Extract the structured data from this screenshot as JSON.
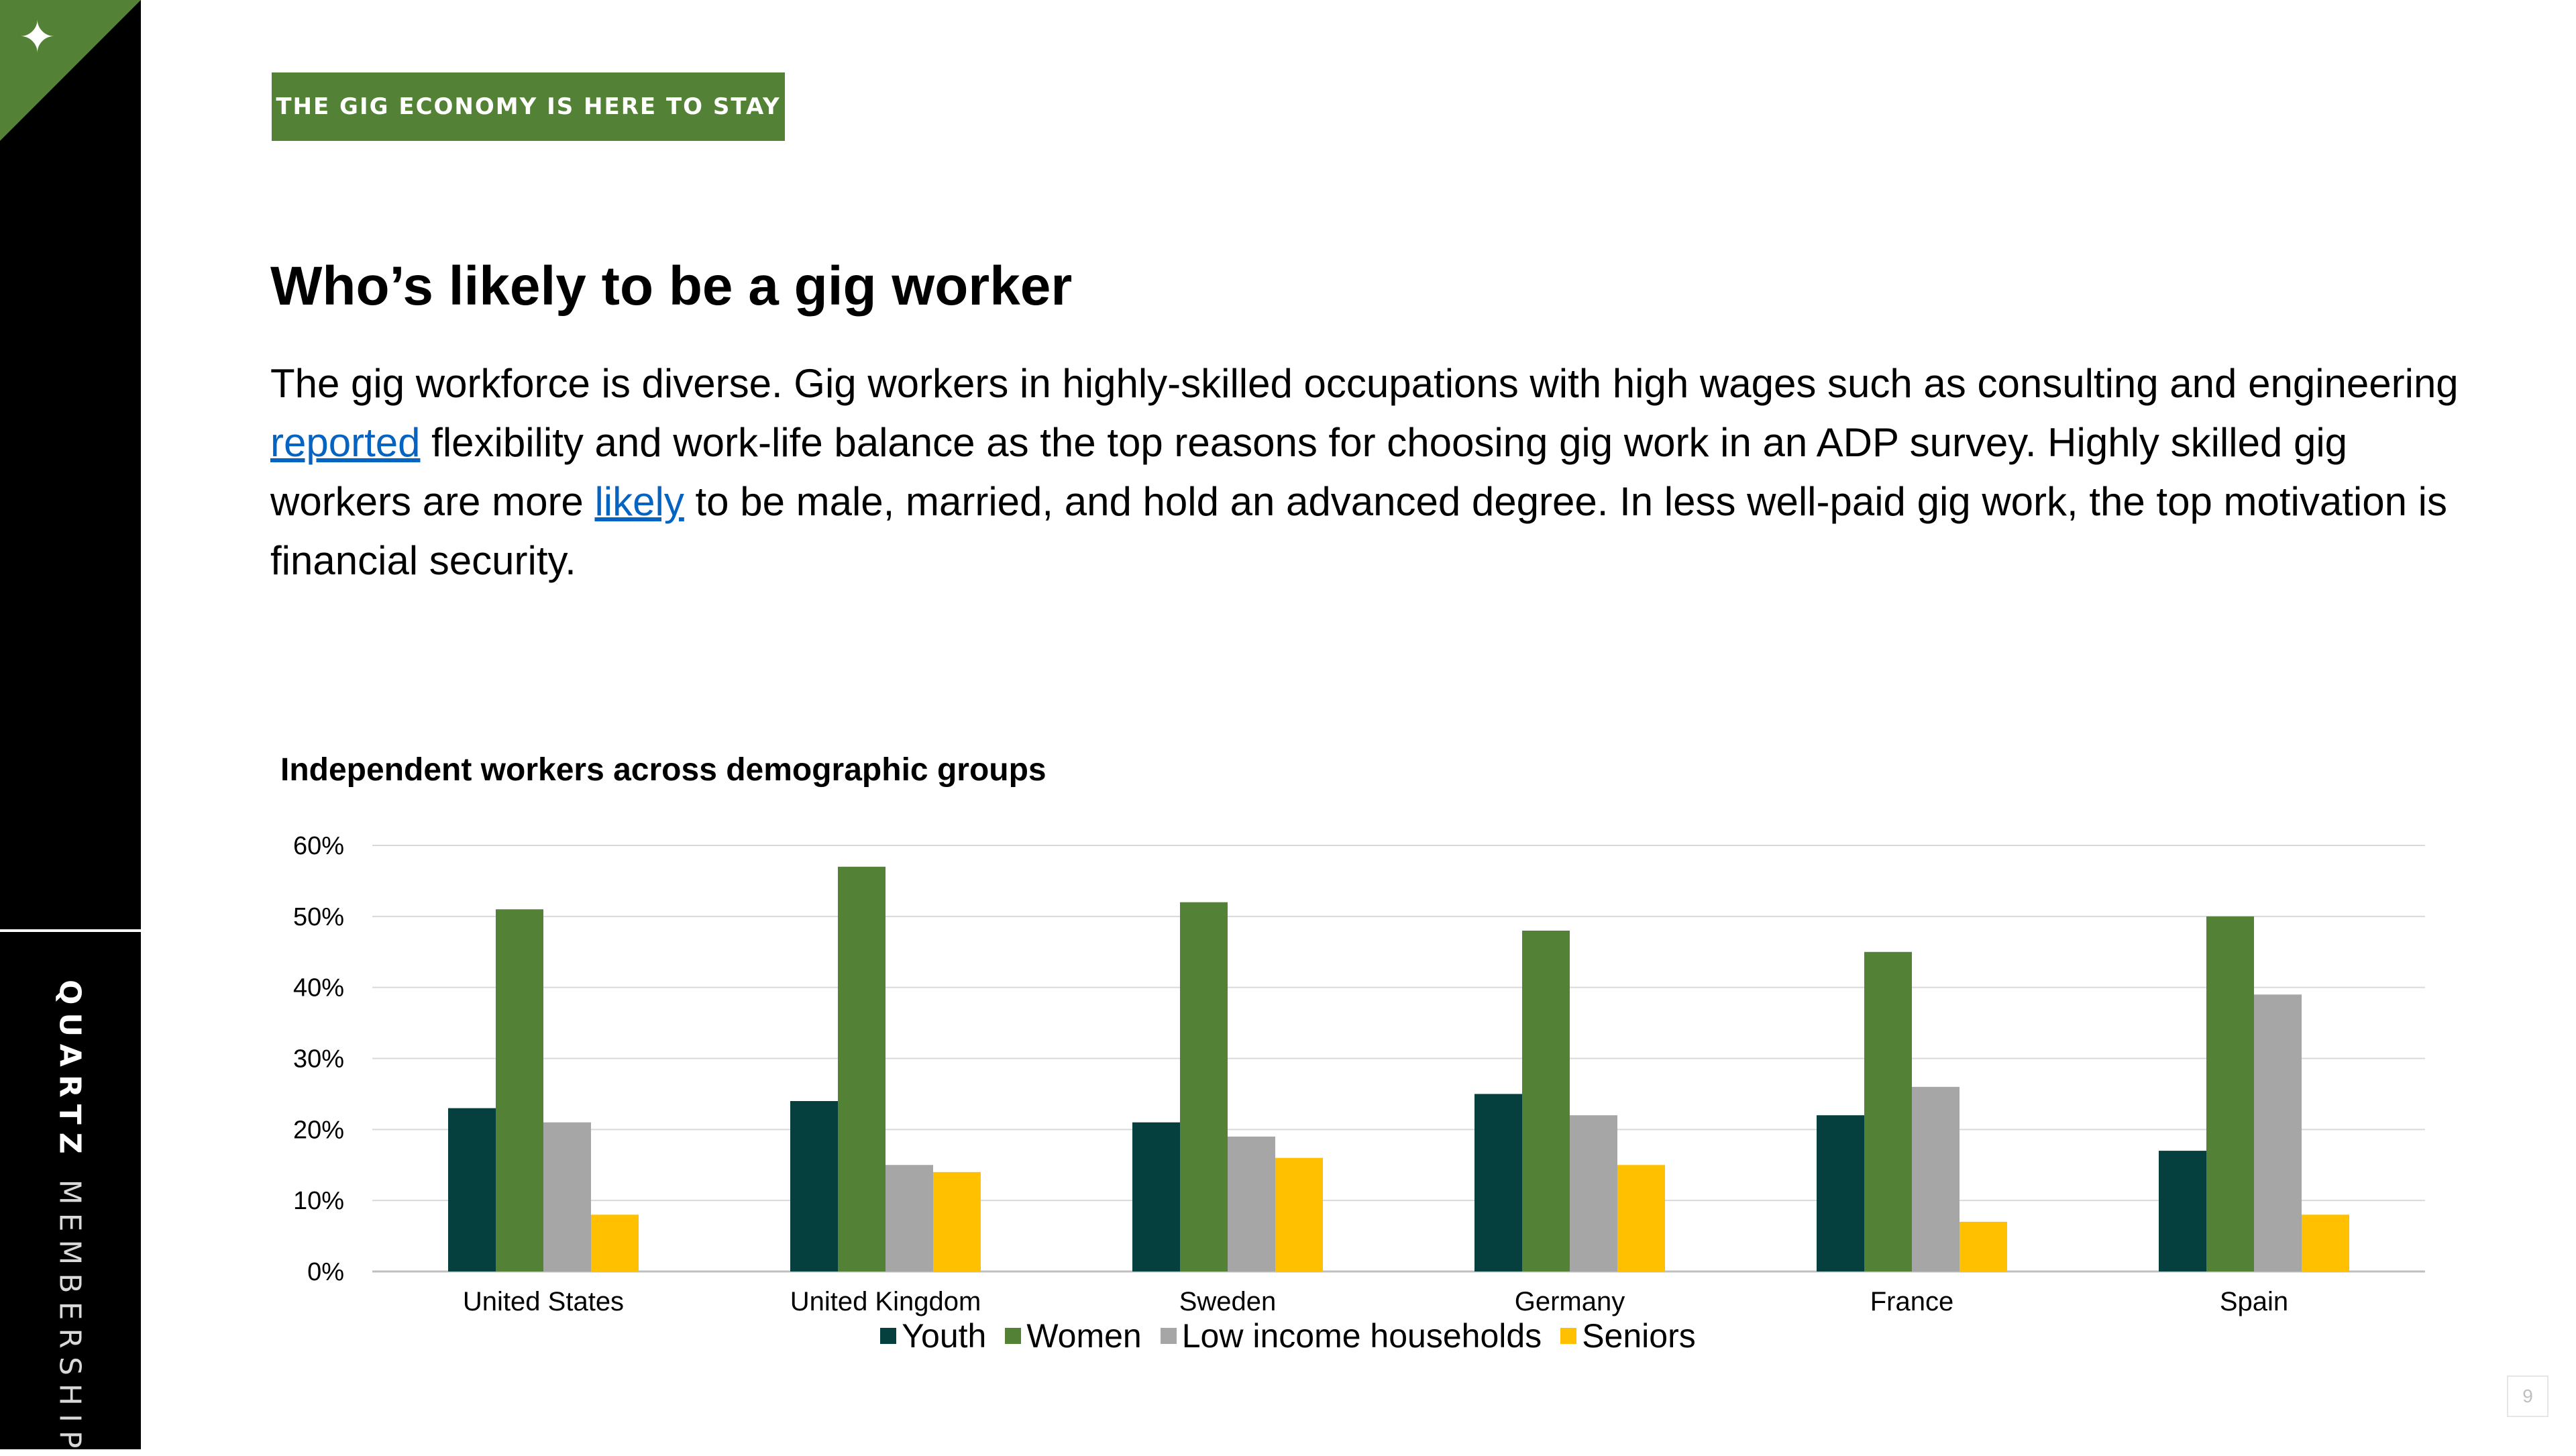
{
  "sidebar": {
    "logo_star": "✦",
    "brand_primary": "QUARTZ",
    "brand_secondary": "MEMBERSHIP"
  },
  "header": {
    "tag": "THE GIG ECONOMY IS HERE TO STAY"
  },
  "content": {
    "title": "Who’s likely to be a gig worker",
    "para_1": "The gig workforce is diverse. Gig workers in highly-skilled occupations with high wages such as consulting and engineering ",
    "link_1": "reported",
    "para_2": " flexibility and work-life balance as the top reasons for choosing gig work in an ADP survey. Highly skilled gig workers are more ",
    "link_2": "likely",
    "para_3": " to be male, married, and hold an advanced degree. In less well-paid gig work, the top motivation is financial security."
  },
  "chart_data": {
    "type": "bar",
    "title": "Independent workers across demographic groups",
    "categories": [
      "United States",
      "United Kingdom",
      "Sweden",
      "Germany",
      "France",
      "Spain"
    ],
    "series": [
      {
        "name": "Youth",
        "color": "#05403f",
        "values": [
          23,
          24,
          21,
          25,
          22,
          17
        ]
      },
      {
        "name": "Women",
        "color": "#538135",
        "values": [
          51,
          57,
          52,
          48,
          45,
          50
        ]
      },
      {
        "name": "Low income households",
        "color": "#a6a6a6",
        "values": [
          21,
          15,
          19,
          22,
          26,
          39
        ]
      },
      {
        "name": "Seniors",
        "color": "#ffc000",
        "values": [
          8,
          14,
          16,
          15,
          7,
          8
        ]
      }
    ],
    "ylim": [
      0,
      60
    ],
    "yticks": [
      "0%",
      "10%",
      "20%",
      "30%",
      "40%",
      "50%",
      "60%"
    ],
    "grid": true,
    "legend": "bottom"
  },
  "footer": {
    "page_number": "9"
  }
}
